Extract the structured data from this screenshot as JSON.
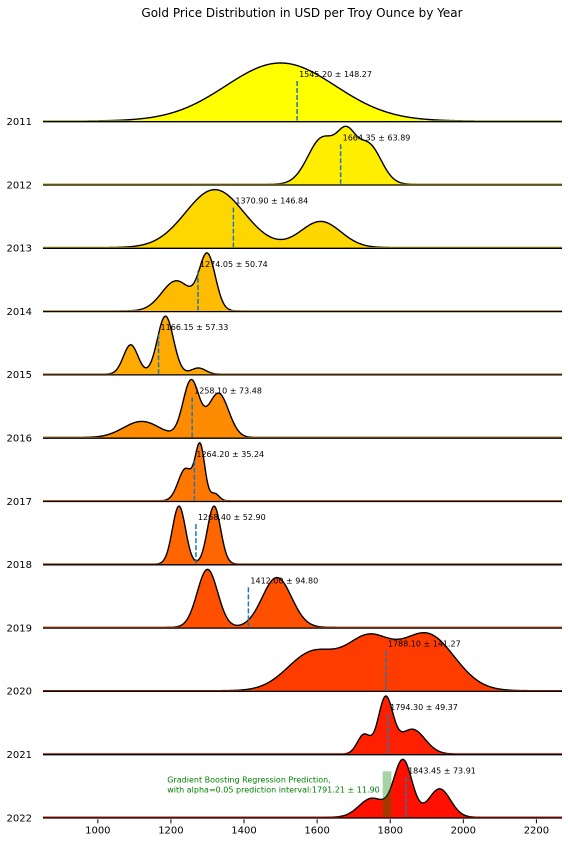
{
  "chart_data": {
    "type": "ridgeline",
    "title": "Gold Price Distribution in USD per Troy Ounce by Year",
    "xlabel": "",
    "ylabel": "",
    "xlim": [
      850,
      2270
    ],
    "xticks": [
      1000,
      1200,
      1400,
      1600,
      1800,
      2000,
      2200
    ],
    "grid": false,
    "series": [
      {
        "year": "2011",
        "label": "1545.20 ± 148.27",
        "mean": 1545.2,
        "std": 148.27,
        "color": "#ffff00",
        "components": [
          [
            1500,
            150,
            1
          ]
        ]
      },
      {
        "year": "2012",
        "label": "1664.35 ± 63.89",
        "mean": 1664.35,
        "std": 63.89,
        "color": "#ffee00",
        "components": [
          [
            1615,
            40,
            0.7
          ],
          [
            1680,
            25,
            0.55
          ],
          [
            1740,
            35,
            0.6
          ]
        ]
      },
      {
        "year": "2013",
        "label": "1370.90 ± 146.84",
        "mean": 1370.9,
        "std": 146.84,
        "color": "#ffd700",
        "components": [
          [
            1320,
            80,
            1
          ],
          [
            1610,
            55,
            0.45
          ]
        ]
      },
      {
        "year": "2014",
        "label": "1274.05 ± 50.74",
        "mean": 1274.05,
        "std": 50.74,
        "color": "#ffbb00",
        "components": [
          [
            1215,
            40,
            0.55
          ],
          [
            1300,
            22,
            1
          ]
        ]
      },
      {
        "year": "2015",
        "label": "1166.15 ± 57.33",
        "mean": 1166.15,
        "std": 57.33,
        "color": "#ffaa00",
        "components": [
          [
            1090,
            20,
            0.38
          ],
          [
            1185,
            22,
            0.75
          ],
          [
            1275,
            20,
            0.08
          ]
        ]
      },
      {
        "year": "2016",
        "label": "1258.10 ± 73.48",
        "mean": 1258.1,
        "std": 73.48,
        "color": "#ff8c00",
        "components": [
          [
            1120,
            50,
            0.2
          ],
          [
            1255,
            22,
            0.7
          ],
          [
            1330,
            28,
            0.55
          ]
        ]
      },
      {
        "year": "2017",
        "label": "1264.20 ± 35.24",
        "mean": 1264.2,
        "std": 35.24,
        "color": "#ff7700",
        "components": [
          [
            1240,
            20,
            0.45
          ],
          [
            1280,
            13,
            0.75
          ],
          [
            1320,
            12,
            0.1
          ]
        ]
      },
      {
        "year": "2018",
        "label": "1268.40 ± 52.90",
        "mean": 1268.4,
        "std": 52.9,
        "color": "#ff6600",
        "components": [
          [
            1222,
            18,
            1
          ],
          [
            1318,
            18,
            1
          ]
        ]
      },
      {
        "year": "2019",
        "label": "1412.00 ± 94.80",
        "mean": 1412.0,
        "std": 94.8,
        "color": "#ff5000",
        "components": [
          [
            1300,
            28,
            1
          ],
          [
            1490,
            40,
            0.86
          ]
        ]
      },
      {
        "year": "2020",
        "label": "1788.10 ± 141.27",
        "mean": 1788.1,
        "std": 141.27,
        "color": "#ff3c00",
        "components": [
          [
            1590,
            70,
            0.45
          ],
          [
            1740,
            60,
            0.55
          ],
          [
            1900,
            75,
            0.66
          ]
        ]
      },
      {
        "year": "2021",
        "label": "1794.30 ± 49.37",
        "mean": 1794.3,
        "std": 49.37,
        "color": "#ff2000",
        "components": [
          [
            1728,
            18,
            0.35
          ],
          [
            1787,
            20,
            1
          ],
          [
            1860,
            35,
            0.45
          ]
        ]
      },
      {
        "year": "2022",
        "label": "1843.45 ± 73.91",
        "mean": 1843.45,
        "std": 73.91,
        "color": "#ff1000",
        "components": [
          [
            1750,
            35,
            0.3
          ],
          [
            1835,
            25,
            0.9
          ],
          [
            1935,
            30,
            0.45
          ]
        ]
      }
    ],
    "prediction": {
      "text_line1": "Gradient Boosting Regression Prediction,",
      "text_line2": "with alpha=0.05 prediction interval:1791.21 ± 11.90",
      "value": 1791.21,
      "interval": 11.9,
      "color": "#008000"
    }
  }
}
